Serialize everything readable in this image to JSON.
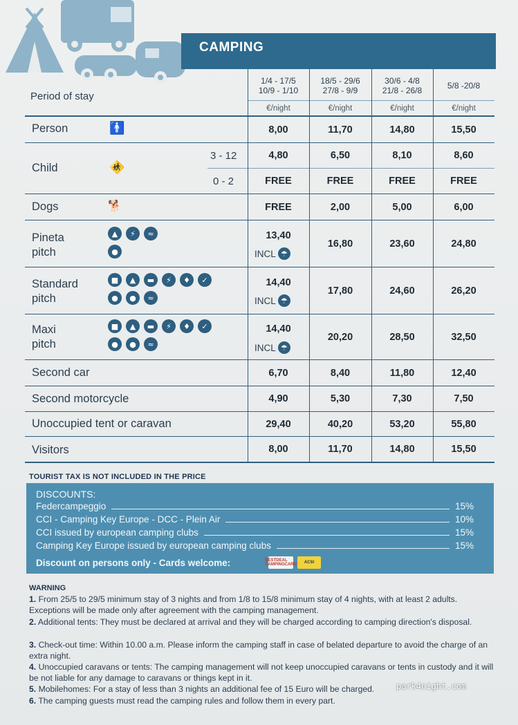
{
  "section_title": "CAMPING",
  "header": {
    "period_label": "Period of stay",
    "seasons": [
      {
        "line1": "1/4 - 17/5",
        "line2": "10/9 - 1/10",
        "unit": "€/night"
      },
      {
        "line1": "18/5 - 29/6",
        "line2": "27/8 - 9/9",
        "unit": "€/night"
      },
      {
        "line1": "30/6 - 4/8",
        "line2": "21/8 - 26/8",
        "unit": "€/night"
      },
      {
        "line1": "5/8 -20/8",
        "line2": "",
        "unit": "€/night"
      }
    ]
  },
  "rows": {
    "person": {
      "label": "Person",
      "values": [
        "8,00",
        "11,70",
        "14,80",
        "15,50"
      ]
    },
    "child": {
      "label": "Child",
      "sub": [
        {
          "age": "3 - 12",
          "values": [
            "4,80",
            "6,50",
            "8,10",
            "8,60"
          ]
        },
        {
          "age": "0 - 2",
          "values": [
            "FREE",
            "FREE",
            "FREE",
            "FREE"
          ]
        }
      ]
    },
    "dogs": {
      "label": "Dogs",
      "values": [
        "FREE",
        "2,00",
        "5,00",
        "6,00"
      ]
    },
    "pineta": {
      "label1": "Pineta",
      "label2": "pitch",
      "values": [
        "13,40",
        "16,80",
        "23,60",
        "24,80"
      ],
      "incl": "INCL"
    },
    "standard": {
      "label1": "Standard",
      "label2": "pitch",
      "values": [
        "14,40",
        "17,80",
        "24,60",
        "26,20"
      ],
      "incl": "INCL"
    },
    "maxi": {
      "label1": "Maxi",
      "label2": "pitch",
      "values": [
        "14,40",
        "20,20",
        "28,50",
        "32,50"
      ],
      "incl": "INCL"
    },
    "second_car": {
      "label": "Second car",
      "values": [
        "6,70",
        "8,40",
        "11,80",
        "12,40"
      ]
    },
    "second_moto": {
      "label": "Second motorcycle",
      "values": [
        "4,90",
        "5,30",
        "7,30",
        "7,50"
      ]
    },
    "unoccupied": {
      "label": "Unoccupied tent or caravan",
      "values": [
        "29,40",
        "40,20",
        "53,20",
        "55,80"
      ]
    },
    "visitors": {
      "label": "Visitors",
      "values": [
        "8,00",
        "11,70",
        "14,80",
        "15,50"
      ]
    }
  },
  "tourist_tax": "TOURIST TAX IS NOT INCLUDED IN THE PRICE",
  "discounts": {
    "title": "DISCOUNTS:",
    "items": [
      {
        "name": "Federcampeggio",
        "pct": "15%"
      },
      {
        "name": "CCI - Camping Key Europe - DCC - Plein Air",
        "pct": "10%"
      },
      {
        "name": "CCI issued by european camping clubs",
        "pct": "15%"
      },
      {
        "name": "Camping Key Europe issued by european camping clubs",
        "pct": "15%"
      }
    ],
    "footer": "Discount on persons only - Cards welcome:",
    "card1": "BESTDEAL CAMPINGCARD",
    "card2": "ACSI"
  },
  "warning": {
    "title": "WARNING",
    "items": [
      {
        "num": "1.",
        "text": "From 25/5 to 29/5 minimum stay of 3 nights and from 1/8 to 15/8 minimum stay of 4 nights, with at least 2 adults. Exceptions will be made only after agreement with the camping management."
      },
      {
        "num": "2.",
        "text": "Additional tents: They must be declared at arrival and they will be charged according to camping direction's disposal."
      },
      {
        "num": "3.",
        "text": "Check-out time: Within 10.00 a.m. Please inform the camping staff in case of belated departure to avoid the charge of an extra night."
      },
      {
        "num": "4.",
        "text": "Unoccupied caravans or tents: The camping management will not keep unoccupied caravans or tents in custody and it will be not liable for any damage to caravans or things kept in it."
      },
      {
        "num": "5.",
        "text": "Mobilehomes: For a stay of less than 3 nights an additional fee of 15 Euro will be charged."
      },
      {
        "num": "6.",
        "text": "The camping guests must read the camping rules and follow them in every part."
      }
    ]
  },
  "watermark": "park4night.com"
}
